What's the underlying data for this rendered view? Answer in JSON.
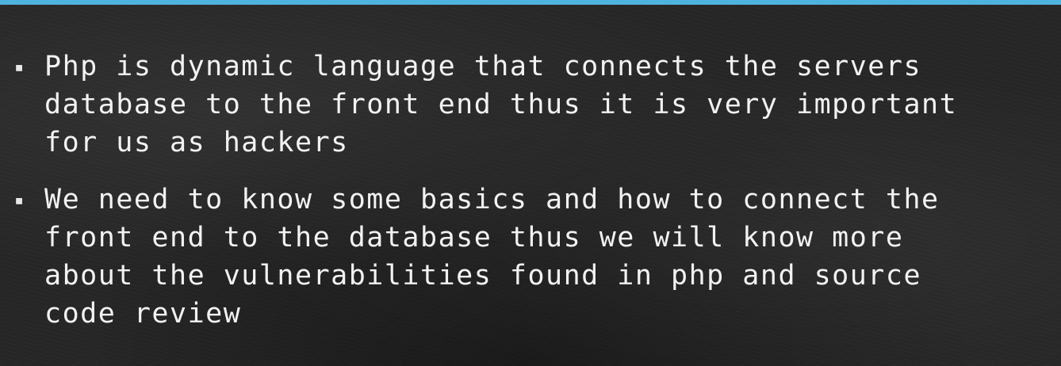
{
  "theme": {
    "accent_color": "#4fb3e0",
    "background_color": "#262626",
    "text_color": "#f2f2f2"
  },
  "bullets": [
    {
      "marker": "▪",
      "text": "Php is dynamic language that connects the servers\ndatabase to the front end thus it is very important\nfor us as hackers"
    },
    {
      "marker": "▪",
      "text": "We need to know some basics and how to connect the\nfront end to the database thus we will know more\nabout the vulnerabilities found in php and source\ncode review"
    }
  ]
}
